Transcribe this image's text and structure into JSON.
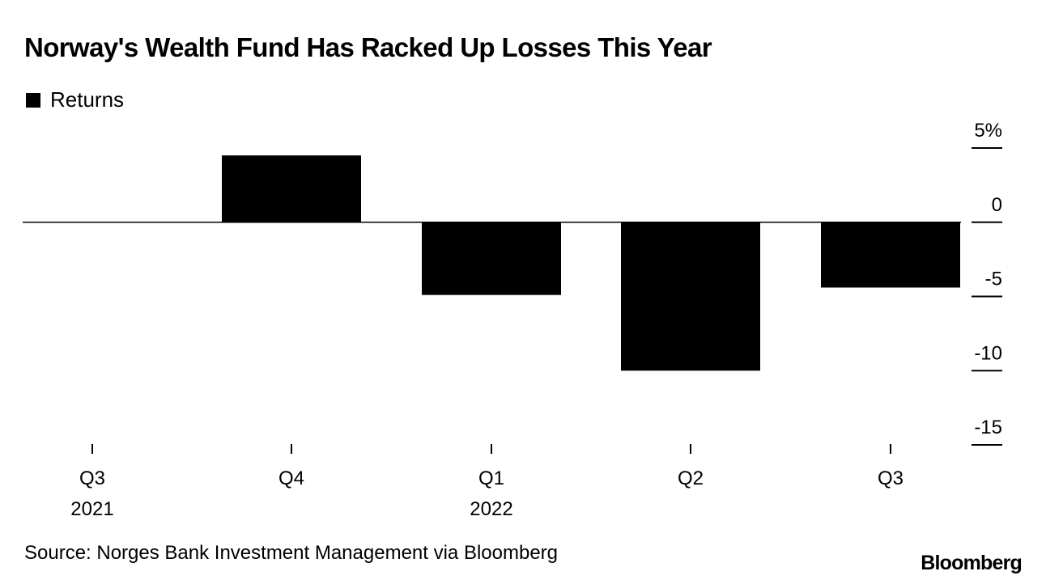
{
  "chart_data": {
    "type": "bar",
    "title": "Norway's Wealth Fund Has Racked Up Losses This Year",
    "legend": [
      "Returns"
    ],
    "categories": [
      {
        "label": "Q3",
        "sublabel": "2021"
      },
      {
        "label": "Q4",
        "sublabel": ""
      },
      {
        "label": "Q1",
        "sublabel": "2022"
      },
      {
        "label": "Q2",
        "sublabel": ""
      },
      {
        "label": "Q3",
        "sublabel": ""
      }
    ],
    "series": [
      {
        "name": "Returns",
        "values": [
          0.0,
          4.5,
          -4.9,
          -10.0,
          -4.4
        ]
      }
    ],
    "ylim": [
      -15,
      5
    ],
    "yticks": [
      5,
      0,
      -5,
      -10,
      -15
    ],
    "ytick_labels": [
      "5%",
      "0",
      "-5",
      "-10",
      "-15"
    ],
    "axis_position": "right",
    "source": "Source: Norges Bank Investment Management via Bloomberg",
    "brand": "Bloomberg",
    "bar_color": "#000000"
  }
}
